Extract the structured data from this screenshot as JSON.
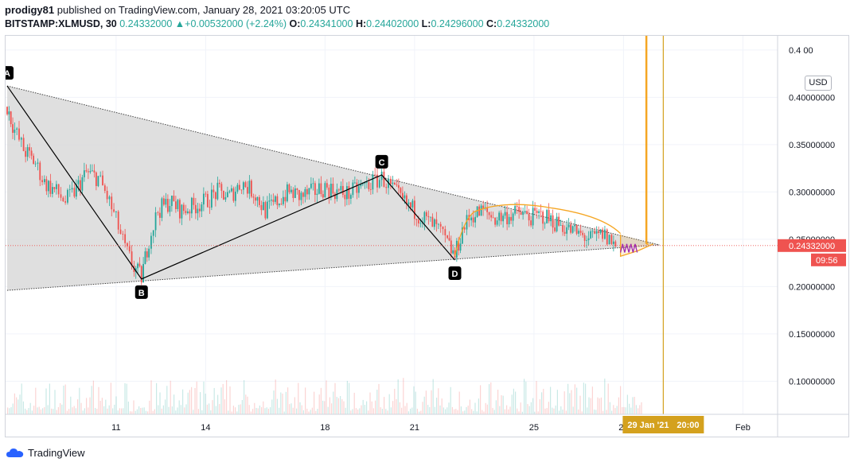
{
  "header": {
    "author": "prodigy81",
    "published_text": "published on TradingView.com, January 28, 2021 03:20:05 UTC",
    "symbol": "BITSTAMP:XLMUSD, 30",
    "last": "0.24332000",
    "change": "+0.00532000 (+2.24%)",
    "o_label": "O:",
    "o_value": "0.24341000",
    "h_label": "H:",
    "h_value": "0.24402000",
    "l_label": "L:",
    "l_value": "0.24296000",
    "c_label": "C:",
    "c_value": "0.24332000",
    "change_arrow": "▲"
  },
  "chart_data": {
    "type": "candlestick",
    "currency": "USD",
    "x_ticks": [
      "11",
      "14",
      "18",
      "21",
      "25",
      "28",
      "Feb"
    ],
    "y_ticks": [
      "0.10000000",
      "0.15000000",
      "0.20000000",
      "0.25000000",
      "0.30000000",
      "0.35000000",
      "0.40000000",
      "0.4 00"
    ],
    "ylim": [
      0.065,
      0.465
    ],
    "last_price": "0.24332000",
    "countdown": "09:56",
    "crosshair_date": "29 Jan '21",
    "crosshair_time": "20:00",
    "colors": {
      "up": "#26a69a",
      "down": "#ef5350",
      "pattern": "#000000",
      "arc": "#f5a623",
      "projection": "#f5a623",
      "harmonic": "#9c27b0",
      "triangle_fill": "#d9d9d9",
      "price_tag": "#ef5350"
    },
    "pattern_points": [
      {
        "label": "A",
        "day": 7.35,
        "price": 0.412
      },
      {
        "label": "B",
        "day": 11.85,
        "price": 0.208
      },
      {
        "label": "C",
        "day": 19.9,
        "price": 0.318
      },
      {
        "label": "D",
        "day": 22.35,
        "price": 0.228
      }
    ],
    "triangle": {
      "upper_start": {
        "day": 7.35,
        "price": 0.412
      },
      "lower_start": {
        "day": 7.35,
        "price": 0.196
      },
      "apex": {
        "day": 29.2,
        "price": 0.244
      }
    },
    "projection": {
      "from_day": 29.1,
      "from_price": 0.245,
      "to_day": 28.9,
      "to_price": 0.465
    },
    "crosshair_day": 29.2,
    "price_path": [
      [
        7.35,
        0.39
      ],
      [
        7.6,
        0.365
      ],
      [
        7.9,
        0.345
      ],
      [
        8.3,
        0.33
      ],
      [
        8.6,
        0.31
      ],
      [
        9.0,
        0.3
      ],
      [
        9.3,
        0.29
      ],
      [
        9.6,
        0.3
      ],
      [
        10.0,
        0.32
      ],
      [
        10.4,
        0.315
      ],
      [
        10.7,
        0.295
      ],
      [
        11.0,
        0.27
      ],
      [
        11.3,
        0.24
      ],
      [
        11.6,
        0.22
      ],
      [
        11.85,
        0.21
      ],
      [
        12.1,
        0.25
      ],
      [
        12.4,
        0.28
      ],
      [
        12.8,
        0.29
      ],
      [
        13.2,
        0.28
      ],
      [
        13.6,
        0.285
      ],
      [
        14.0,
        0.29
      ],
      [
        14.4,
        0.3
      ],
      [
        14.8,
        0.295
      ],
      [
        15.2,
        0.31
      ],
      [
        15.6,
        0.3
      ],
      [
        16.0,
        0.28
      ],
      [
        16.4,
        0.29
      ],
      [
        16.8,
        0.3
      ],
      [
        17.2,
        0.295
      ],
      [
        17.6,
        0.3
      ],
      [
        18.0,
        0.305
      ],
      [
        18.4,
        0.3
      ],
      [
        18.8,
        0.298
      ],
      [
        19.2,
        0.305
      ],
      [
        19.6,
        0.31
      ],
      [
        19.9,
        0.315
      ],
      [
        20.2,
        0.305
      ],
      [
        20.6,
        0.29
      ],
      [
        21.0,
        0.28
      ],
      [
        21.4,
        0.27
      ],
      [
        21.8,
        0.26
      ],
      [
        22.1,
        0.245
      ],
      [
        22.35,
        0.232
      ],
      [
        22.6,
        0.26
      ],
      [
        22.9,
        0.275
      ],
      [
        23.3,
        0.28
      ],
      [
        23.7,
        0.272
      ],
      [
        24.1,
        0.275
      ],
      [
        24.5,
        0.278
      ],
      [
        24.9,
        0.273
      ],
      [
        25.3,
        0.275
      ],
      [
        25.7,
        0.268
      ],
      [
        26.1,
        0.262
      ],
      [
        26.5,
        0.255
      ],
      [
        26.9,
        0.25
      ],
      [
        27.3,
        0.255
      ],
      [
        27.6,
        0.248
      ],
      [
        27.8,
        0.24
      ]
    ]
  },
  "footer": {
    "brand": "TradingView"
  }
}
